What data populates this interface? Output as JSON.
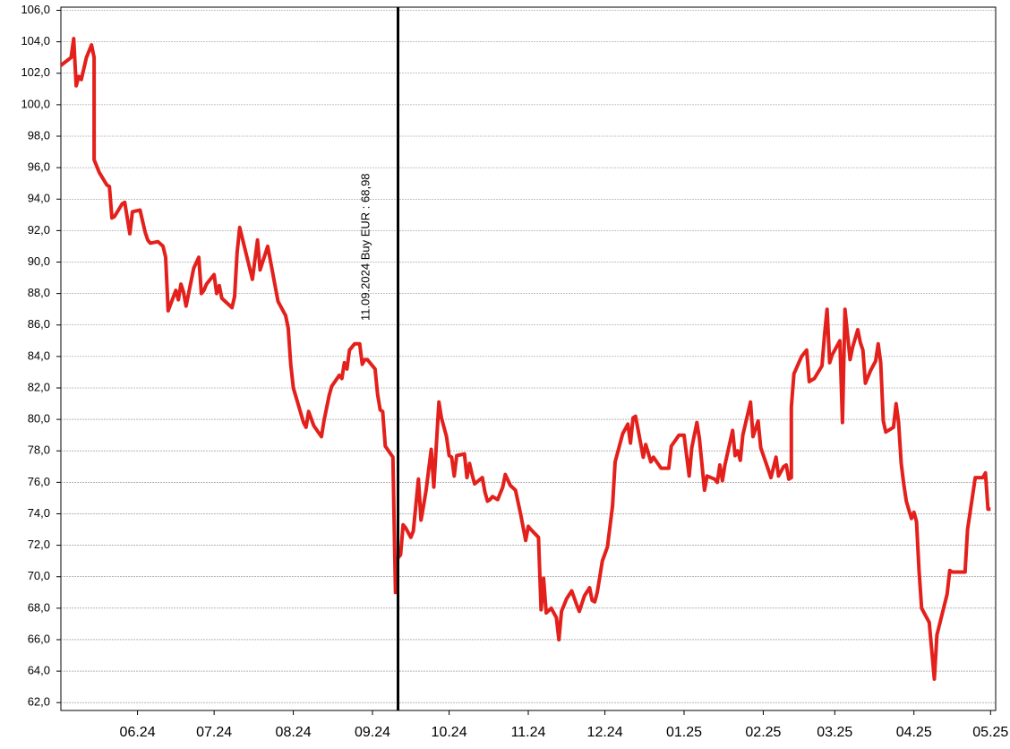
{
  "chart_data": {
    "type": "line",
    "x": [
      0,
      4,
      5,
      6,
      7,
      8,
      10,
      12,
      13,
      13,
      15,
      18,
      19,
      20,
      21,
      24,
      25,
      27,
      28,
      31,
      33,
      34,
      35,
      38,
      40,
      41,
      42,
      45,
      46,
      47,
      48,
      49,
      52,
      54,
      55,
      56,
      57,
      60,
      61,
      62,
      63,
      67,
      68,
      69,
      70,
      75,
      77,
      78,
      81,
      85,
      88,
      89,
      90,
      91,
      95,
      96,
      97,
      99,
      102,
      103,
      105,
      106,
      109,
      110,
      111,
      112,
      113,
      115,
      117,
      118,
      119,
      120,
      123,
      124,
      125,
      126,
      127,
      130,
      131,
      131,
      132,
      133,
      134,
      135,
      137,
      138,
      140,
      141,
      142,
      143,
      145,
      146,
      148,
      149,
      151,
      152,
      153,
      154,
      155,
      158,
      159,
      160,
      161,
      162,
      165,
      166,
      167,
      168,
      169,
      171,
      173,
      174,
      176,
      178,
      180,
      182,
      183,
      184,
      187,
      188,
      189,
      190,
      192,
      194,
      195,
      196,
      198,
      200,
      202,
      203,
      205,
      207,
      208,
      209,
      210,
      211,
      212,
      214,
      216,
      217,
      220,
      222,
      223,
      224,
      225,
      228,
      229,
      231,
      232,
      235,
      238,
      239,
      242,
      244,
      246,
      247,
      249,
      250,
      252,
      253,
      256,
      257,
      258,
      259,
      260,
      263,
      264,
      265,
      266,
      267,
      270,
      271,
      273,
      274,
      277,
      278,
      280,
      281,
      283,
      284,
      285,
      286,
      286,
      287,
      290,
      292,
      293,
      294,
      295,
      298,
      299,
      300,
      301,
      302,
      305,
      306,
      307,
      309,
      310,
      312,
      313,
      314,
      315,
      317,
      319,
      320,
      321,
      322,
      323,
      326,
      327,
      328,
      329,
      330,
      331,
      333,
      334,
      335,
      336,
      337,
      340,
      342,
      343,
      347,
      348,
      349,
      354,
      355,
      358,
      361,
      362,
      363,
      364
    ],
    "series": [
      {
        "color": "#e3201b",
        "values": [
          102.5,
          103.0,
          104.2,
          101.2,
          101.8,
          101.6,
          103.0,
          103.8,
          103.0,
          96.5,
          95.7,
          94.9,
          94.8,
          92.8,
          92.9,
          93.7,
          93.8,
          91.8,
          93.2,
          93.3,
          91.9,
          91.4,
          91.2,
          91.3,
          91.0,
          90.3,
          86.9,
          88.2,
          87.6,
          88.6,
          88.1,
          87.2,
          89.6,
          90.3,
          88.0,
          88.2,
          88.6,
          89.2,
          88.0,
          88.5,
          87.7,
          87.1,
          87.8,
          90.6,
          92.2,
          88.9,
          91.4,
          89.5,
          91.0,
          87.5,
          86.6,
          85.8,
          83.5,
          82.0,
          79.8,
          79.5,
          80.5,
          79.6,
          78.9,
          79.9,
          81.5,
          82.1,
          82.8,
          82.6,
          83.6,
          83.2,
          84.4,
          84.8,
          84.8,
          83.5,
          83.8,
          83.8,
          83.2,
          81.6,
          80.6,
          80.5,
          78.3,
          77.6,
          69.0,
          70.5,
          71.2,
          71.4,
          73.3,
          73.1,
          72.5,
          72.9,
          76.2,
          73.6,
          74.5,
          75.5,
          78.1,
          75.7,
          81.1,
          80.1,
          78.9,
          77.7,
          77.6,
          76.4,
          77.7,
          77.8,
          76.3,
          77.2,
          76.5,
          75.9,
          76.3,
          75.4,
          74.8,
          74.9,
          75.1,
          74.9,
          75.7,
          76.5,
          75.8,
          75.5,
          74.0,
          72.3,
          73.2,
          73.0,
          72.5,
          67.9,
          69.9,
          67.7,
          68.0,
          67.4,
          66.0,
          67.8,
          68.6,
          69.1,
          68.2,
          67.8,
          68.8,
          69.3,
          68.5,
          68.4,
          69.0,
          70.0,
          71.0,
          71.9,
          74.5,
          77.3,
          79.1,
          79.7,
          78.5,
          80.1,
          80.2,
          77.6,
          78.4,
          77.3,
          77.6,
          76.9,
          76.9,
          78.3,
          79.0,
          79.0,
          76.4,
          78.2,
          79.8,
          78.8,
          75.5,
          76.4,
          76.2,
          76.0,
          77.1,
          76.1,
          77.1,
          79.3,
          77.7,
          78.0,
          77.4,
          79.0,
          81.1,
          78.9,
          79.9,
          78.2,
          76.8,
          76.3,
          77.6,
          76.4,
          77.0,
          77.1,
          76.2,
          76.3,
          80.8,
          82.9,
          84.0,
          84.4,
          82.4,
          82.5,
          82.6,
          83.4,
          85.4,
          87.0,
          83.6,
          84.1,
          85.0,
          79.8,
          87.0,
          83.8,
          84.6,
          85.7,
          84.9,
          84.4,
          82.3,
          83.1,
          83.7,
          84.8,
          83.6,
          79.9,
          79.2,
          79.5,
          81.0,
          79.8,
          77.2,
          75.9,
          74.8,
          73.7,
          74.1,
          73.5,
          70.4,
          68.0,
          67.1,
          63.5,
          66.3,
          68.9,
          70.4,
          70.3,
          70.3,
          73.0,
          76.3,
          76.3,
          76.6,
          74.3,
          74.3
        ]
      }
    ],
    "xlim": [
      0,
      366
    ],
    "xticks": [
      {
        "value": 30,
        "label": "06.24"
      },
      {
        "value": 60,
        "label": "07.24"
      },
      {
        "value": 91,
        "label": "08.24"
      },
      {
        "value": 122,
        "label": "09.24"
      },
      {
        "value": 152,
        "label": "10.24"
      },
      {
        "value": 183,
        "label": "11.24"
      },
      {
        "value": 213,
        "label": "12.24"
      },
      {
        "value": 244,
        "label": "01.25"
      },
      {
        "value": 275,
        "label": "02.25"
      },
      {
        "value": 303,
        "label": "03.25"
      },
      {
        "value": 334,
        "label": "04.25"
      },
      {
        "value": 364,
        "label": "05.25"
      }
    ],
    "ylim": [
      61.5,
      106.2
    ],
    "yticks": [
      {
        "value": 62,
        "label": "62,0"
      },
      {
        "value": 64,
        "label": "64,0"
      },
      {
        "value": 66,
        "label": "66,0"
      },
      {
        "value": 68,
        "label": "68,0"
      },
      {
        "value": 70,
        "label": "70,0"
      },
      {
        "value": 72,
        "label": "72,0"
      },
      {
        "value": 74,
        "label": "74,0"
      },
      {
        "value": 76,
        "label": "76,0"
      },
      {
        "value": 78,
        "label": "78,0"
      },
      {
        "value": 80,
        "label": "80,0"
      },
      {
        "value": 82,
        "label": "82,0"
      },
      {
        "value": 84,
        "label": "84,0"
      },
      {
        "value": 86,
        "label": "86,0"
      },
      {
        "value": 88,
        "label": "88,0"
      },
      {
        "value": 90,
        "label": "90,0"
      },
      {
        "value": 92,
        "label": "92,0"
      },
      {
        "value": 94,
        "label": "94,0"
      },
      {
        "value": 96,
        "label": "96,0"
      },
      {
        "value": 98,
        "label": "98,0"
      },
      {
        "value": 100,
        "label": "100,0"
      },
      {
        "value": 102,
        "label": "102,0"
      },
      {
        "value": 104,
        "label": "104,0"
      },
      {
        "value": 106,
        "label": "106,0"
      }
    ],
    "grid": true,
    "annotations": [
      {
        "x": 132,
        "text": "11.09.2024 Buy EUR : 68,98"
      }
    ]
  }
}
